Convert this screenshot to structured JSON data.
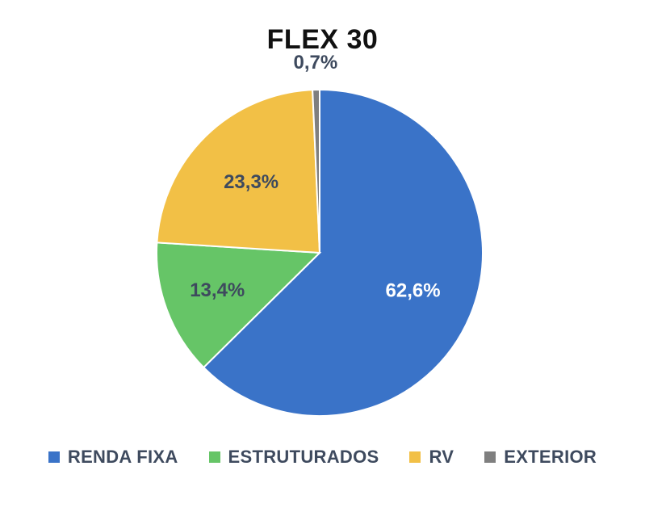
{
  "chart_data": {
    "type": "pie",
    "title": "FLEX 30",
    "categories": [
      "RENDA FIXA",
      "ESTRUTURADOS",
      "RV",
      "EXTERIOR"
    ],
    "values": [
      62.6,
      13.4,
      23.3,
      0.7
    ],
    "data_labels": [
      "62,6%",
      "13,4%",
      "23,3%",
      "0,7%"
    ],
    "colors": [
      "#3a73c8",
      "#66c567",
      "#f2c046",
      "#7f7f7f"
    ],
    "label_colors": [
      "#ffffff",
      "#3e4a5e",
      "#3e4a5e",
      "#3e4a5e"
    ],
    "start_angle_deg": 0,
    "direction": "clockwise",
    "legend_position": "bottom"
  }
}
